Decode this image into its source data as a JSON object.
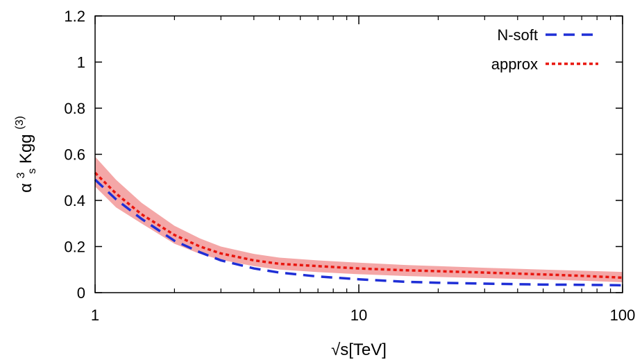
{
  "chart_data": {
    "type": "line",
    "xlabel": "√s[TeV]",
    "ylabel": {
      "alpha": "α",
      "sup": "3",
      "sub": "s",
      "main": " Kgg",
      "sup2": "(3)"
    },
    "x_scale": "log",
    "xlim": [
      1,
      100
    ],
    "ylim": [
      0,
      1.2
    ],
    "x_ticks": [
      {
        "value": 1,
        "label": "1"
      },
      {
        "value": 10,
        "label": "10"
      },
      {
        "value": 100,
        "label": "100"
      }
    ],
    "y_ticks": [
      {
        "value": 0,
        "label": "0"
      },
      {
        "value": 0.2,
        "label": "0.2"
      },
      {
        "value": 0.4,
        "label": "0.4"
      },
      {
        "value": 0.6,
        "label": "0.6"
      },
      {
        "value": 0.8,
        "label": "0.8"
      },
      {
        "value": 1.0,
        "label": "1"
      },
      {
        "value": 1.2,
        "label": "1.2"
      }
    ],
    "grid": false,
    "legend_position": "top-right",
    "series": [
      {
        "name": "N-soft",
        "style": "dashed",
        "color": "#1f2fd6",
        "x": [
          1,
          1.2,
          1.5,
          2,
          2.5,
          3,
          4,
          5,
          7,
          10,
          15,
          20,
          30,
          50,
          70,
          100
        ],
        "y": [
          0.49,
          0.405,
          0.32,
          0.225,
          0.175,
          0.14,
          0.105,
          0.087,
          0.07,
          0.058,
          0.047,
          0.043,
          0.039,
          0.035,
          0.034,
          0.032
        ]
      },
      {
        "name": "approx",
        "style": "dotted",
        "color": "#e8160f",
        "x": [
          1,
          1.2,
          1.5,
          2,
          2.5,
          3,
          4,
          5,
          7,
          10,
          15,
          20,
          30,
          50,
          70,
          100
        ],
        "y": [
          0.52,
          0.43,
          0.34,
          0.25,
          0.2,
          0.17,
          0.14,
          0.125,
          0.115,
          0.105,
          0.097,
          0.093,
          0.087,
          0.079,
          0.073,
          0.065
        ],
        "band_upper": [
          0.59,
          0.49,
          0.39,
          0.29,
          0.235,
          0.2,
          0.168,
          0.152,
          0.14,
          0.13,
          0.12,
          0.115,
          0.108,
          0.1,
          0.095,
          0.09
        ],
        "band_lower": [
          0.46,
          0.37,
          0.3,
          0.212,
          0.168,
          0.142,
          0.115,
          0.1,
          0.089,
          0.08,
          0.072,
          0.068,
          0.063,
          0.057,
          0.052,
          0.045
        ]
      }
    ],
    "band_color": "#f4a7a7"
  }
}
